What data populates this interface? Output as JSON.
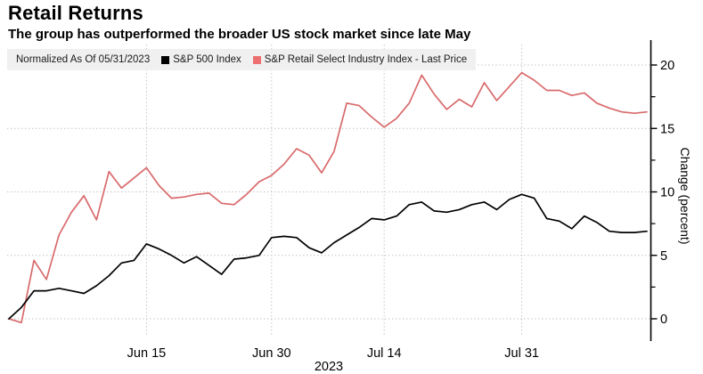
{
  "header": {
    "title": "Retail Returns",
    "subtitle": "The group has outperformed the broader US stock market since late May"
  },
  "legend": {
    "note": "Normalized As Of 05/31/2023",
    "series": [
      {
        "label": "S&P 500 Index",
        "color": "#000000"
      },
      {
        "label": "S&P Retail Select Industry Index - Last Price",
        "color": "#ee6f70"
      }
    ]
  },
  "axes": {
    "y_label": "Change (percent)",
    "y_ticks": [
      0,
      5,
      10,
      15,
      20
    ],
    "x_tick_labels": [
      "Jun 15",
      "Jun 30",
      "Jul 14",
      "Jul 31"
    ],
    "x_year_label": "2023"
  },
  "chart_data": {
    "type": "line",
    "title": "Retail Returns",
    "subtitle": "The group has outperformed the broader US stock market since late May",
    "ylabel": "Change (percent)",
    "ylim": [
      -1.75,
      22
    ],
    "y_ticks": [
      0,
      5,
      10,
      15,
      20
    ],
    "grid": "dotted; horizontal at y ticks, vertical at labeled dates",
    "legend_position": "top",
    "legend_note": "Normalized As Of 05/31/2023",
    "x": [
      "May 31",
      "Jun 1",
      "Jun 2",
      "Jun 5",
      "Jun 6",
      "Jun 7",
      "Jun 8",
      "Jun 9",
      "Jun 12",
      "Jun 13",
      "Jun 14",
      "Jun 15",
      "Jun 16",
      "Jun 20",
      "Jun 21",
      "Jun 22",
      "Jun 23",
      "Jun 26",
      "Jun 27",
      "Jun 28",
      "Jun 29",
      "Jun 30",
      "Jul 3",
      "Jul 5",
      "Jul 6",
      "Jul 7",
      "Jul 10",
      "Jul 11",
      "Jul 12",
      "Jul 13",
      "Jul 14",
      "Jul 17",
      "Jul 18",
      "Jul 19",
      "Jul 20",
      "Jul 21",
      "Jul 24",
      "Jul 25",
      "Jul 26",
      "Jul 27",
      "Jul 28",
      "Jul 31",
      "Aug 1",
      "Aug 2",
      "Aug 3",
      "Aug 4",
      "Aug 7",
      "Aug 8",
      "Aug 9",
      "Aug 10",
      "Aug 11",
      "Aug 14"
    ],
    "x_gridline_indices": [
      11,
      21,
      30,
      41
    ],
    "x_gridline_labels": [
      "Jun 15",
      "Jun 30",
      "Jul 14",
      "Jul 31"
    ],
    "x_year_label": "2023",
    "series": [
      {
        "name": "S&P 500 Index",
        "color": "#000000",
        "values": [
          0.0,
          0.9,
          2.2,
          2.2,
          2.4,
          2.2,
          2.0,
          2.6,
          3.4,
          4.4,
          4.6,
          5.9,
          5.5,
          5.0,
          4.4,
          4.9,
          4.2,
          3.5,
          4.7,
          4.8,
          5.0,
          6.4,
          6.5,
          6.4,
          5.6,
          5.2,
          6.0,
          6.6,
          7.2,
          7.9,
          7.8,
          8.1,
          9.0,
          9.2,
          8.5,
          8.4,
          8.6,
          9.0,
          9.2,
          8.6,
          9.4,
          9.8,
          9.5,
          7.9,
          7.7,
          7.1,
          8.1,
          7.6,
          6.9,
          6.8,
          6.8,
          6.9
        ]
      },
      {
        "name": "S&P Retail Select Industry Index - Last Price",
        "color": "#d96a6c",
        "values": [
          0.0,
          -0.3,
          4.6,
          3.1,
          6.6,
          8.4,
          9.7,
          7.8,
          11.6,
          10.3,
          11.1,
          11.9,
          10.5,
          9.5,
          9.6,
          9.8,
          9.9,
          9.1,
          9.0,
          9.8,
          10.8,
          11.3,
          12.2,
          13.4,
          12.9,
          11.5,
          13.2,
          17.0,
          16.8,
          15.9,
          15.1,
          15.8,
          17.0,
          19.2,
          17.7,
          16.5,
          17.3,
          16.7,
          18.6,
          17.2,
          18.3,
          19.4,
          18.8,
          18.0,
          18.0,
          17.6,
          17.8,
          17.0,
          16.6,
          16.3,
          16.2,
          16.3
        ]
      }
    ]
  }
}
